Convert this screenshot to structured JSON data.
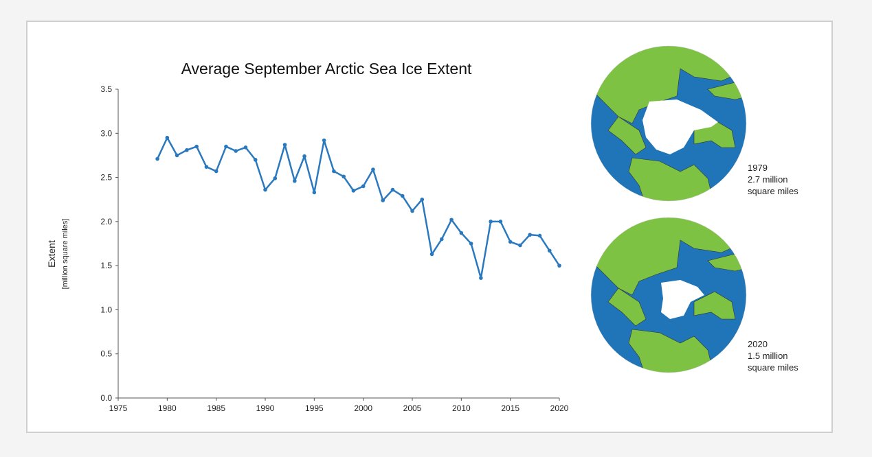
{
  "chart_data": {
    "type": "line",
    "title": "Average September Arctic Sea Ice Extent",
    "xlabel": "",
    "ylabel": "Extent",
    "ylabel_units": "[million square miles]",
    "xlim": [
      1975,
      2020
    ],
    "ylim": [
      0,
      3.5
    ],
    "xticks": [
      "1975",
      "1980",
      "1985",
      "1990",
      "1995",
      "2000",
      "2005",
      "2010",
      "2015",
      "2020"
    ],
    "yticks": [
      "0.0",
      "0.5",
      "1.0",
      "1.5",
      "2.0",
      "2.5",
      "3.0",
      "3.5"
    ],
    "grid": false,
    "series": [
      {
        "name": "September extent",
        "color": "#2a78be",
        "x": [
          1979,
          1980,
          1981,
          1982,
          1983,
          1984,
          1985,
          1986,
          1987,
          1988,
          1989,
          1990,
          1991,
          1992,
          1993,
          1994,
          1995,
          1996,
          1997,
          1998,
          1999,
          2000,
          2001,
          2002,
          2003,
          2004,
          2005,
          2006,
          2007,
          2008,
          2009,
          2010,
          2011,
          2012,
          2013,
          2014,
          2015,
          2016,
          2017,
          2018,
          2019,
          2020
        ],
        "values": [
          2.71,
          2.95,
          2.75,
          2.81,
          2.85,
          2.62,
          2.57,
          2.85,
          2.8,
          2.84,
          2.7,
          2.36,
          2.49,
          2.87,
          2.46,
          2.74,
          2.33,
          2.92,
          2.57,
          2.51,
          2.35,
          2.4,
          2.59,
          2.24,
          2.36,
          2.29,
          2.12,
          2.25,
          1.63,
          1.8,
          2.02,
          1.87,
          1.75,
          1.36,
          2.0,
          2.0,
          1.77,
          1.73,
          1.85,
          1.84,
          1.67,
          1.5
        ]
      }
    ]
  },
  "maps": [
    {
      "year": "1979",
      "value": "2.7 million",
      "unit": "square miles"
    },
    {
      "year": "2020",
      "value": "1.5 million",
      "unit": "square miles"
    }
  ],
  "colors": {
    "ocean": "#1f75b8",
    "land": "#7dc242",
    "ice": "#ffffff"
  }
}
